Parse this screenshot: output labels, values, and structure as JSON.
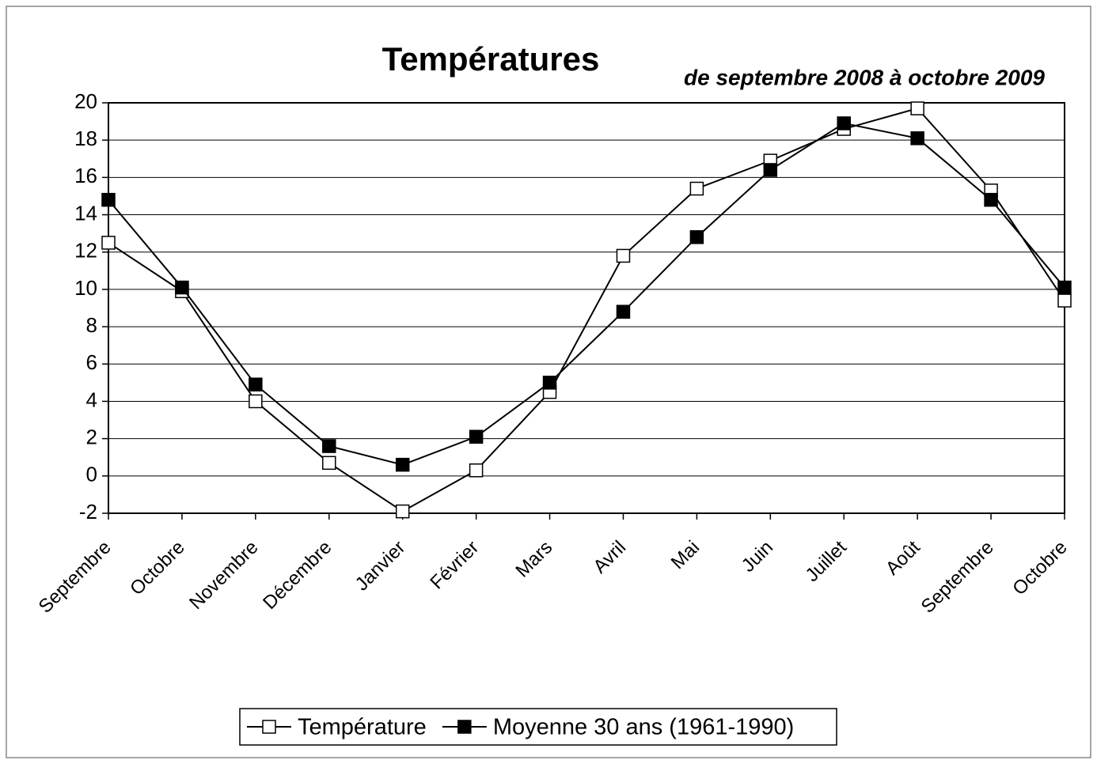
{
  "chart_data": {
    "type": "line",
    "title": "Températures",
    "subtitle": "de septembre 2008 à octobre 2009",
    "categories": [
      "Septembre",
      "Octobre",
      "Novembre",
      "Décembre",
      "Janvier",
      "Février",
      "Mars",
      "Avril",
      "Mai",
      "Juin",
      "Juillet",
      "Août",
      "Septembre",
      "Octobre"
    ],
    "series": [
      {
        "name": "Température",
        "color": "#ffffff",
        "values": [
          12.5,
          9.9,
          4.0,
          0.7,
          -1.9,
          0.3,
          4.5,
          11.8,
          15.4,
          16.9,
          18.6,
          19.7,
          15.3,
          9.4
        ]
      },
      {
        "name": "Moyenne 30 ans (1961-1990)",
        "color": "#000000",
        "values": [
          14.8,
          10.1,
          4.9,
          1.6,
          0.6,
          2.1,
          5.0,
          8.8,
          12.8,
          16.4,
          18.9,
          18.1,
          14.8,
          10.1
        ]
      }
    ],
    "ylim": [
      -2,
      20
    ],
    "yticks": [
      -2,
      0,
      2,
      4,
      6,
      8,
      10,
      12,
      14,
      16,
      18,
      20
    ],
    "grid": true,
    "legend": "bottom"
  }
}
